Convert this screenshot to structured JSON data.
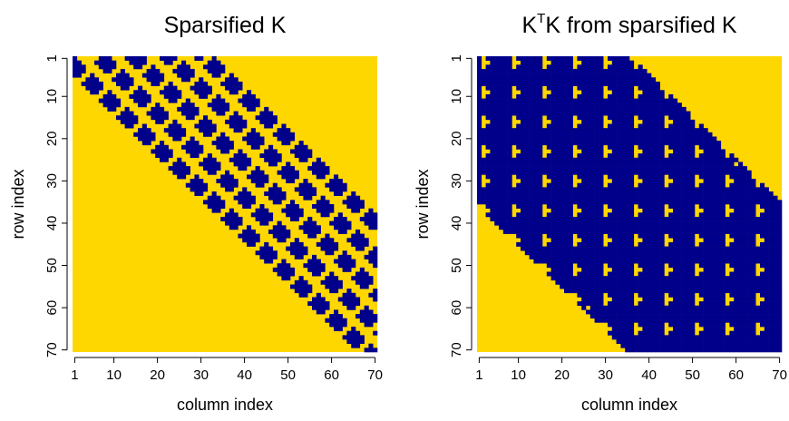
{
  "colors": {
    "zero": "#FFD700",
    "nonzero": "#00008B"
  },
  "chart_data": [
    {
      "type": "heatmap",
      "title": "Sparsified K",
      "xlabel": "column index",
      "ylabel": "row index",
      "xlim": [
        1,
        70
      ],
      "ylim": [
        1,
        70
      ],
      "y_reversed": true,
      "xticks": [
        1,
        10,
        20,
        30,
        40,
        50,
        60,
        70
      ],
      "yticks": [
        1,
        10,
        20,
        30,
        40,
        50,
        60,
        70
      ],
      "description_of_pattern": "Block-band sparsity pattern of a 70x70 matrix: nonzeros (blue) lie on diagonal-sheared blocks along bands near the main diagonal; zeros are yellow.",
      "nrow": 70,
      "ncol": 70,
      "values_rule": "nonzero where |j - (i + 8*k)| <= 3.5 for diagonal bands k in {-2,-1,0,1,2} intersected with periodic stripes"
    },
    {
      "type": "heatmap",
      "title_parts": {
        "pre": "K",
        "sup": "T",
        "post": "K from sparsified K"
      },
      "title": "KTK from sparsified K",
      "xlabel": "column index",
      "ylabel": "row index",
      "xlim": [
        1,
        70
      ],
      "ylim": [
        1,
        70
      ],
      "y_reversed": true,
      "xticks": [
        1,
        10,
        20,
        30,
        40,
        50,
        60,
        70
      ],
      "yticks": [
        1,
        10,
        20,
        30,
        40,
        50,
        60,
        70
      ],
      "nrow": 70,
      "ncol": 70
    }
  ]
}
